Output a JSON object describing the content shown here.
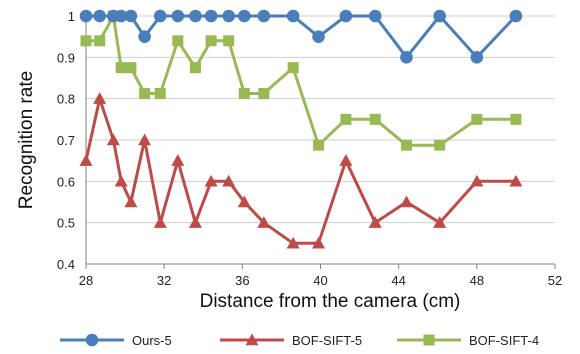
{
  "chart_data": {
    "type": "line",
    "title": "",
    "xlabel": "Distance from the camera (cm)",
    "ylabel": "Recognition rate",
    "xlim": [
      28,
      52
    ],
    "ylim": [
      0.4,
      1.0
    ],
    "x_ticks": [
      28,
      32,
      36,
      40,
      44,
      48,
      52
    ],
    "y_ticks": [
      0.4,
      0.5,
      0.6,
      0.7,
      0.8,
      0.9,
      1
    ],
    "grid": "horizontal",
    "legend_position": "bottom",
    "series": [
      {
        "name": "Ours-5",
        "color": "#4a7ebb",
        "marker": "circle",
        "points": [
          [
            28,
            1
          ],
          [
            28.7,
            1
          ],
          [
            29.4,
            1
          ],
          [
            29.8,
            1
          ],
          [
            30.3,
            1
          ],
          [
            31,
            0.95
          ],
          [
            31.8,
            1
          ],
          [
            32.7,
            1
          ],
          [
            33.6,
            1
          ],
          [
            34.4,
            1
          ],
          [
            35.3,
            1
          ],
          [
            36.1,
            1
          ],
          [
            37.1,
            1
          ],
          [
            38.6,
            1
          ],
          [
            39.9,
            0.95
          ],
          [
            41.3,
            1
          ],
          [
            42.8,
            1
          ],
          [
            44.4,
            0.9
          ],
          [
            46.1,
            1
          ],
          [
            48,
            0.9
          ],
          [
            50,
            1
          ]
        ]
      },
      {
        "name": "BOF-SIFT-5",
        "color": "#be4b48",
        "marker": "triangle",
        "points": [
          [
            28,
            0.65
          ],
          [
            28.7,
            0.8
          ],
          [
            29.4,
            0.7
          ],
          [
            29.8,
            0.6
          ],
          [
            30.3,
            0.55
          ],
          [
            31,
            0.7
          ],
          [
            31.8,
            0.5
          ],
          [
            32.7,
            0.65
          ],
          [
            33.6,
            0.5
          ],
          [
            34.4,
            0.6
          ],
          [
            35.3,
            0.6
          ],
          [
            36.1,
            0.55
          ],
          [
            37.1,
            0.5
          ],
          [
            38.6,
            0.45
          ],
          [
            39.9,
            0.45
          ],
          [
            41.3,
            0.65
          ],
          [
            42.8,
            0.5
          ],
          [
            44.4,
            0.55
          ],
          [
            46.1,
            0.5
          ],
          [
            48,
            0.6
          ],
          [
            50,
            0.6
          ]
        ]
      },
      {
        "name": "BOF-SIFT-4",
        "color": "#98b954",
        "marker": "square",
        "points": [
          [
            28,
            0.94
          ],
          [
            28.7,
            0.94
          ],
          [
            29.4,
            1
          ],
          [
            29.8,
            0.875
          ],
          [
            30.3,
            0.875
          ],
          [
            31,
            0.8125
          ],
          [
            31.8,
            0.8125
          ],
          [
            32.7,
            0.94
          ],
          [
            33.6,
            0.875
          ],
          [
            34.4,
            0.94
          ],
          [
            35.3,
            0.94
          ],
          [
            36.1,
            0.8125
          ],
          [
            37.1,
            0.8125
          ],
          [
            38.6,
            0.875
          ],
          [
            39.9,
            0.6875
          ],
          [
            41.3,
            0.75
          ],
          [
            42.8,
            0.75
          ],
          [
            44.4,
            0.6875
          ],
          [
            46.1,
            0.6875
          ],
          [
            48,
            0.75
          ],
          [
            50,
            0.75
          ]
        ]
      }
    ]
  }
}
